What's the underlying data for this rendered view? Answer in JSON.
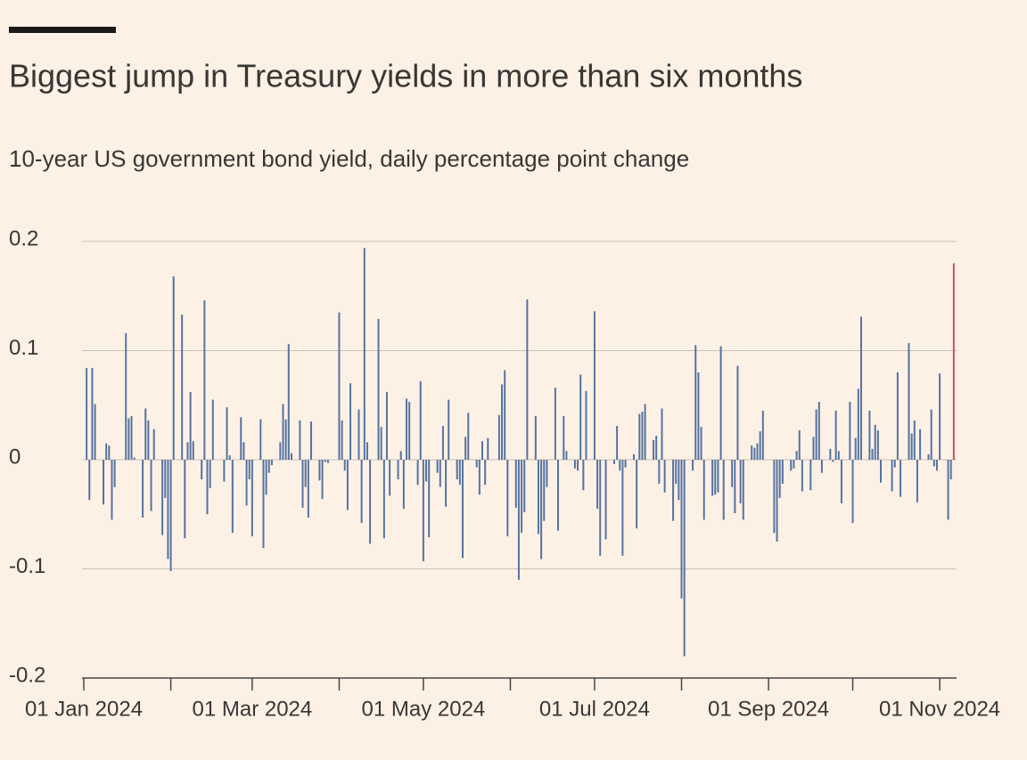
{
  "chart_data": {
    "type": "bar",
    "title": "Biggest jump in Treasury yields in more than six months",
    "subtitle": "10-year US government bond yield, daily percentage point change",
    "color": "#56739f",
    "last_bar_color": "#c2506b",
    "grid": true,
    "ylim": [
      -0.2,
      0.2
    ],
    "yticks": [
      0.2,
      0.1,
      0,
      -0.1,
      -0.2
    ],
    "xlim": [
      "2024-01-01",
      "2024-11-07"
    ],
    "xticks": [
      {
        "value": "2024-01-01",
        "label": "01 Jan 2024"
      },
      {
        "value": "2024-02-01"
      },
      {
        "value": "2024-03-01",
        "label": "01 Mar 2024"
      },
      {
        "value": "2024-04-01"
      },
      {
        "value": "2024-05-01",
        "label": "01 May 2024"
      },
      {
        "value": "2024-06-01"
      },
      {
        "value": "2024-07-01",
        "label": "01 Jul 2024"
      },
      {
        "value": "2024-08-01"
      },
      {
        "value": "2024-09-01",
        "label": "01 Sep 2024"
      },
      {
        "value": "2024-10-01"
      },
      {
        "value": "2024-11-01",
        "label": "01 Nov 2024"
      }
    ],
    "x": [
      "2024-01-02",
      "2024-01-03",
      "2024-01-04",
      "2024-01-05",
      "2024-01-08",
      "2024-01-09",
      "2024-01-10",
      "2024-01-11",
      "2024-01-12",
      "2024-01-16",
      "2024-01-17",
      "2024-01-18",
      "2024-01-19",
      "2024-01-22",
      "2024-01-23",
      "2024-01-24",
      "2024-01-25",
      "2024-01-26",
      "2024-01-29",
      "2024-01-30",
      "2024-01-31",
      "2024-02-01",
      "2024-02-02",
      "2024-02-05",
      "2024-02-06",
      "2024-02-07",
      "2024-02-08",
      "2024-02-09",
      "2024-02-12",
      "2024-02-13",
      "2024-02-14",
      "2024-02-15",
      "2024-02-16",
      "2024-02-20",
      "2024-02-21",
      "2024-02-22",
      "2024-02-23",
      "2024-02-26",
      "2024-02-27",
      "2024-02-28",
      "2024-02-29",
      "2024-03-01",
      "2024-03-04",
      "2024-03-05",
      "2024-03-06",
      "2024-03-07",
      "2024-03-08",
      "2024-03-11",
      "2024-03-12",
      "2024-03-13",
      "2024-03-14",
      "2024-03-15",
      "2024-03-18",
      "2024-03-19",
      "2024-03-20",
      "2024-03-21",
      "2024-03-22",
      "2024-03-25",
      "2024-03-26",
      "2024-03-27",
      "2024-03-28",
      "2024-04-01",
      "2024-04-02",
      "2024-04-03",
      "2024-04-04",
      "2024-04-05",
      "2024-04-08",
      "2024-04-09",
      "2024-04-10",
      "2024-04-11",
      "2024-04-12",
      "2024-04-15",
      "2024-04-16",
      "2024-04-17",
      "2024-04-18",
      "2024-04-19",
      "2024-04-22",
      "2024-04-23",
      "2024-04-24",
      "2024-04-25",
      "2024-04-26",
      "2024-04-29",
      "2024-04-30",
      "2024-05-01",
      "2024-05-02",
      "2024-05-03",
      "2024-05-06",
      "2024-05-07",
      "2024-05-08",
      "2024-05-09",
      "2024-05-10",
      "2024-05-13",
      "2024-05-14",
      "2024-05-15",
      "2024-05-16",
      "2024-05-17",
      "2024-05-20",
      "2024-05-21",
      "2024-05-22",
      "2024-05-23",
      "2024-05-24",
      "2024-05-28",
      "2024-05-29",
      "2024-05-30",
      "2024-05-31",
      "2024-06-03",
      "2024-06-04",
      "2024-06-05",
      "2024-06-06",
      "2024-06-07",
      "2024-06-10",
      "2024-06-11",
      "2024-06-12",
      "2024-06-13",
      "2024-06-14",
      "2024-06-17",
      "2024-06-18",
      "2024-06-20",
      "2024-06-21",
      "2024-06-24",
      "2024-06-25",
      "2024-06-26",
      "2024-06-27",
      "2024-06-28",
      "2024-07-01",
      "2024-07-02",
      "2024-07-03",
      "2024-07-05",
      "2024-07-08",
      "2024-07-09",
      "2024-07-10",
      "2024-07-11",
      "2024-07-12",
      "2024-07-15",
      "2024-07-16",
      "2024-07-17",
      "2024-07-18",
      "2024-07-19",
      "2024-07-22",
      "2024-07-23",
      "2024-07-24",
      "2024-07-25",
      "2024-07-26",
      "2024-07-29",
      "2024-07-30",
      "2024-07-31",
      "2024-08-01",
      "2024-08-02",
      "2024-08-05",
      "2024-08-06",
      "2024-08-07",
      "2024-08-08",
      "2024-08-09",
      "2024-08-12",
      "2024-08-13",
      "2024-08-14",
      "2024-08-15",
      "2024-08-16",
      "2024-08-19",
      "2024-08-20",
      "2024-08-21",
      "2024-08-22",
      "2024-08-23",
      "2024-08-26",
      "2024-08-27",
      "2024-08-28",
      "2024-08-29",
      "2024-08-30",
      "2024-09-03",
      "2024-09-04",
      "2024-09-05",
      "2024-09-06",
      "2024-09-09",
      "2024-09-10",
      "2024-09-11",
      "2024-09-12",
      "2024-09-13",
      "2024-09-16",
      "2024-09-17",
      "2024-09-18",
      "2024-09-19",
      "2024-09-20",
      "2024-09-23",
      "2024-09-24",
      "2024-09-25",
      "2024-09-26",
      "2024-09-27",
      "2024-09-30",
      "2024-10-01",
      "2024-10-02",
      "2024-10-03",
      "2024-10-04",
      "2024-10-07",
      "2024-10-08",
      "2024-10-09",
      "2024-10-10",
      "2024-10-11",
      "2024-10-15",
      "2024-10-16",
      "2024-10-17",
      "2024-10-18",
      "2024-10-21",
      "2024-10-22",
      "2024-10-23",
      "2024-10-24",
      "2024-10-25",
      "2024-10-28",
      "2024-10-29",
      "2024-10-30",
      "2024-10-31",
      "2024-11-01",
      "2024-11-04",
      "2024-11-05",
      "2024-11-06"
    ],
    "values": [
      0.084,
      -0.037,
      0.084,
      0.051,
      -0.041,
      0.015,
      0.013,
      -0.055,
      -0.025,
      0.116,
      0.038,
      0.04,
      0.002,
      -0.053,
      0.047,
      0.036,
      -0.047,
      0.028,
      -0.069,
      -0.035,
      -0.091,
      -0.102,
      0.168,
      0.133,
      -0.072,
      0.016,
      0.062,
      0.017,
      -0.018,
      0.146,
      -0.05,
      -0.026,
      0.055,
      -0.02,
      0.048,
      0.004,
      -0.067,
      0.039,
      0.016,
      -0.042,
      -0.018,
      -0.07,
      0.037,
      -0.081,
      -0.032,
      -0.012,
      -0.005,
      0.016,
      0.051,
      0.037,
      0.106,
      0.006,
      0.036,
      -0.044,
      -0.025,
      -0.053,
      0.035,
      -0.019,
      -0.036,
      -0.002,
      -0.003,
      0.135,
      0.036,
      -0.01,
      -0.046,
      0.07,
      0.046,
      -0.058,
      0.194,
      0.016,
      -0.077,
      0.129,
      0.03,
      -0.072,
      0.062,
      -0.033,
      -0.018,
      0.008,
      -0.045,
      0.056,
      0.053,
      -0.023,
      0.072,
      -0.093,
      -0.02,
      -0.071,
      -0.012,
      -0.025,
      0.031,
      -0.043,
      0.055,
      -0.018,
      -0.023,
      -0.09,
      0.021,
      0.043,
      -0.007,
      -0.032,
      0.017,
      -0.023,
      0.02,
      0.041,
      0.069,
      0.082,
      -0.07,
      -0.044,
      -0.11,
      -0.067,
      -0.048,
      0.147,
      0.04,
      -0.068,
      -0.091,
      -0.056,
      -0.025,
      0.066,
      -0.065,
      0.04,
      0.008,
      -0.008,
      -0.01,
      0.078,
      -0.028,
      0.063,
      0.136,
      -0.045,
      -0.088,
      -0.073,
      -0.004,
      0.031,
      -0.01,
      -0.088,
      -0.007,
      0.005,
      -0.063,
      0.042,
      0.044,
      0.051,
      0.018,
      0.022,
      -0.022,
      0.047,
      -0.03,
      -0.056,
      -0.022,
      -0.037,
      -0.127,
      -0.18,
      -0.01,
      0.105,
      0.08,
      0.03,
      -0.055,
      -0.033,
      -0.032,
      -0.03,
      0.104,
      -0.055,
      -0.025,
      -0.049,
      0.086,
      -0.04,
      -0.055,
      0.013,
      0.011,
      0.015,
      0.026,
      0.045,
      -0.067,
      -0.075,
      -0.035,
      -0.022,
      -0.01,
      -0.008,
      0.008,
      0.027,
      -0.029,
      -0.028,
      0.021,
      0.046,
      0.053,
      -0.012,
      0.01,
      -0.002,
      0.045,
      0.008,
      -0.04,
      0.053,
      -0.058,
      0.02,
      0.065,
      0.131,
      0.045,
      0.01,
      0.032,
      0.027,
      -0.021,
      -0.029,
      -0.007,
      0.08,
      -0.034,
      0.107,
      0.024,
      0.036,
      -0.039,
      0.028,
      0.005,
      0.046,
      -0.006,
      -0.01,
      0.079,
      -0.055,
      -0.018,
      0.18
    ]
  }
}
